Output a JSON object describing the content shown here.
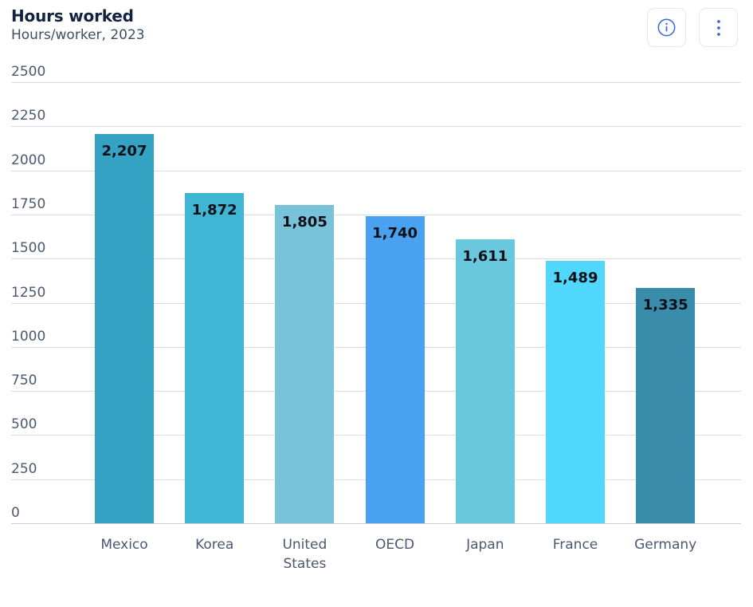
{
  "header": {
    "title": "Hours worked",
    "subtitle": "Hours/worker, 2023",
    "info_button_label": "Get info",
    "menu_button_label": "More options"
  },
  "colors": {
    "accent_blue": "#3D6FD8",
    "title_text": "#13233E",
    "subtitle_text": "#3F4E66",
    "axis_text": "#4A5870",
    "gridline": "#D9DCE2",
    "baseline": "#C9CED6",
    "value_label_text": "#0D1117",
    "button_border": "#E4E7EB"
  },
  "chart_data": {
    "type": "bar",
    "title": "Hours worked",
    "subtitle": "Hours/worker, 2023",
    "categories": [
      "Mexico",
      "Korea",
      "United States",
      "OECD",
      "Japan",
      "France",
      "Germany"
    ],
    "values": [
      2207,
      1872,
      1805,
      1740,
      1611,
      1489,
      1335
    ],
    "value_labels": [
      "2,207",
      "1,872",
      "1,805",
      "1,740",
      "1,611",
      "1,489",
      "1,335"
    ],
    "bar_colors": [
      "#33A2C3",
      "#3FB6D3",
      "#78C3D9",
      "#4AA1F1",
      "#69C7DE",
      "#4FD8FB",
      "#3A8CAB"
    ],
    "xlabel": "",
    "ylabel": "",
    "ylim": [
      0,
      2500
    ],
    "yticks": [
      0,
      250,
      500,
      750,
      1000,
      1250,
      1500,
      1750,
      2000,
      2250,
      2500
    ],
    "grid": true,
    "legend": false,
    "value_labels_position": "inside-top"
  }
}
